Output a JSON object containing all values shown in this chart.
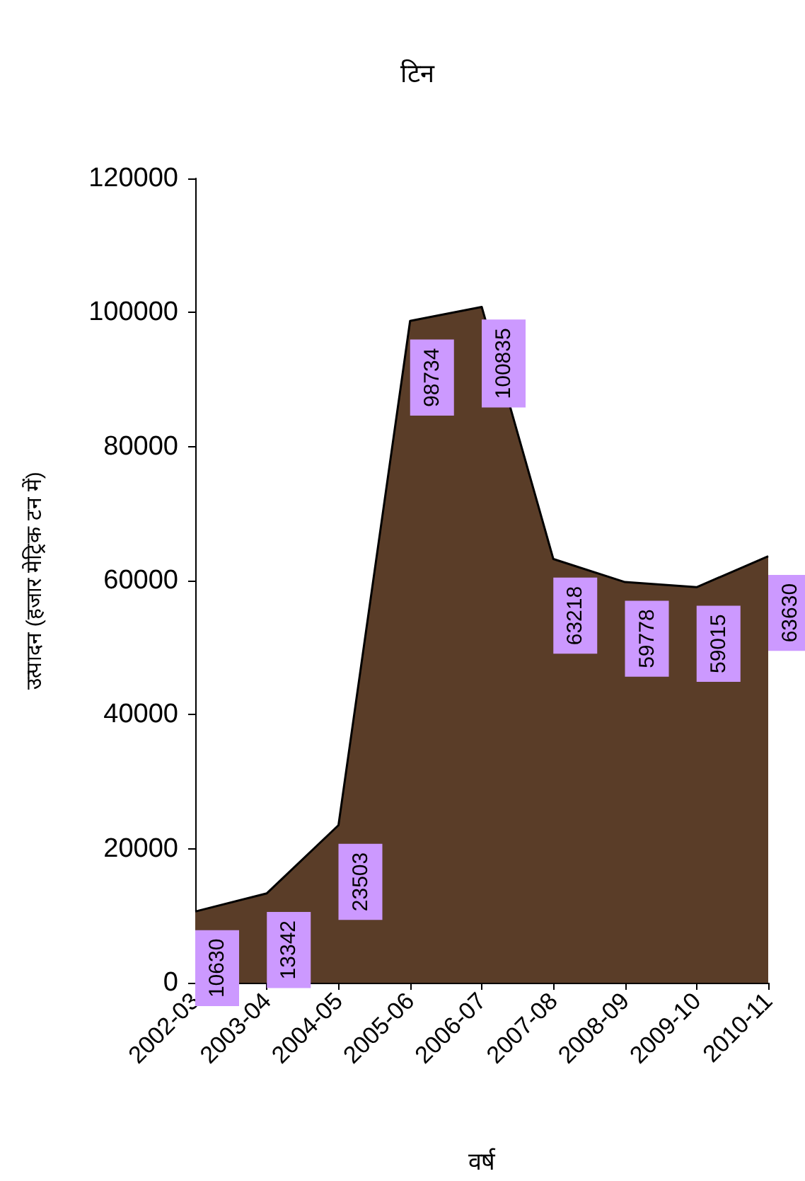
{
  "chart_data": {
    "type": "area",
    "title": "टिन",
    "xlabel": "वर्ष",
    "ylabel": "उत्पादन (हजार मेट्रिक टन में)",
    "categories": [
      "2002-03",
      "2003-04",
      "2004-05",
      "2005-06",
      "2006-07",
      "2007-08",
      "2008-09",
      "2009-10",
      "2010-11"
    ],
    "values": [
      10630,
      13342,
      23503,
      98734,
      100835,
      63218,
      59778,
      59015,
      63630
    ],
    "color": "#5a3d28",
    "ylim": [
      0,
      120000
    ],
    "yticks": [
      0,
      20000,
      40000,
      60000,
      80000,
      100000,
      120000
    ],
    "grid": false,
    "data_labels": true
  }
}
